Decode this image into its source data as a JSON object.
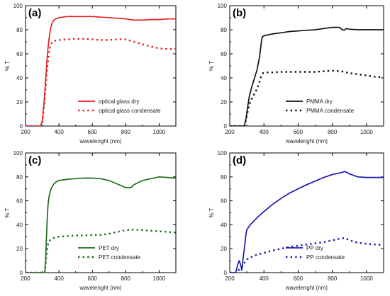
{
  "chart_data": [
    {
      "type": "line",
      "panel_label": "(a)",
      "xlabel": "wavelenght (nm)",
      "ylabel": "% T",
      "xlim": [
        200,
        1100
      ],
      "ylim": [
        0,
        100
      ],
      "xticks": [
        200,
        400,
        600,
        800,
        1000
      ],
      "yticks": [
        0,
        20,
        40,
        60,
        80,
        100
      ],
      "legend_position": "bottom-right",
      "series": [
        {
          "name": "optical glass dry",
          "color": "#e32222",
          "style": "solid",
          "x": [
            200,
            290,
            300,
            310,
            320,
            330,
            340,
            350,
            360,
            370,
            380,
            400,
            450,
            500,
            550,
            600,
            650,
            700,
            750,
            800,
            850,
            900,
            950,
            1000,
            1050,
            1100
          ],
          "y": [
            0,
            0,
            4,
            18,
            38,
            58,
            72,
            81,
            86,
            88,
            89,
            90,
            91,
            91,
            91,
            91,
            90.5,
            90,
            89.5,
            89,
            88,
            88,
            88.5,
            88.5,
            89,
            89
          ]
        },
        {
          "name": "optical glass condensate",
          "color": "#e32222",
          "style": "dotted",
          "x": [
            200,
            290,
            300,
            310,
            320,
            330,
            340,
            350,
            360,
            380,
            400,
            450,
            500,
            550,
            600,
            650,
            700,
            750,
            800,
            850,
            900,
            950,
            1000,
            1050,
            1100
          ],
          "y": [
            0,
            0,
            3,
            15,
            32,
            48,
            60,
            67,
            70,
            71,
            71.5,
            72,
            72.5,
            72.5,
            72,
            71.5,
            71.5,
            72,
            72,
            70,
            68,
            66,
            64.5,
            64,
            64
          ]
        }
      ]
    },
    {
      "type": "line",
      "panel_label": "(b)",
      "xlabel": "wavelenght (nm)",
      "ylabel": "% T",
      "xlim": [
        200,
        1100
      ],
      "ylim": [
        0,
        100
      ],
      "xticks": [
        200,
        400,
        600,
        800,
        1000
      ],
      "yticks": [
        0,
        20,
        40,
        60,
        80,
        100
      ],
      "legend_position": "bottom-right",
      "series": [
        {
          "name": "PMMA dry",
          "color": "#111111",
          "style": "solid",
          "x": [
            200,
            285,
            295,
            305,
            315,
            330,
            345,
            360,
            375,
            385,
            390,
            400,
            450,
            500,
            550,
            600,
            650,
            700,
            750,
            800,
            840,
            860,
            870,
            880,
            900,
            950,
            1000,
            1050,
            1100
          ],
          "y": [
            0,
            0,
            6,
            16,
            25,
            33,
            40,
            47,
            58,
            70,
            74,
            75,
            76.5,
            77.5,
            78.5,
            79,
            79.5,
            80,
            81,
            82,
            82,
            80,
            79.5,
            81,
            80.5,
            80,
            80,
            80,
            80
          ]
        },
        {
          "name": "PMMA condensate",
          "color": "#111111",
          "style": "dotted",
          "x": [
            200,
            285,
            295,
            305,
            315,
            330,
            345,
            360,
            375,
            385,
            395,
            420,
            450,
            500,
            550,
            600,
            650,
            700,
            750,
            800,
            850,
            900,
            950,
            1000,
            1050,
            1100
          ],
          "y": [
            0,
            0,
            5,
            12,
            18,
            23,
            27,
            31,
            37,
            42,
            44,
            44.5,
            44.5,
            45,
            45,
            45,
            45,
            45,
            45.5,
            46,
            45.5,
            44,
            43,
            42,
            41,
            40.5
          ]
        }
      ]
    },
    {
      "type": "line",
      "panel_label": "(c)",
      "xlabel": "wavelenght (nm)",
      "ylabel": "% T",
      "xlim": [
        200,
        1100
      ],
      "ylim": [
        0,
        100
      ],
      "xticks": [
        200,
        400,
        600,
        800,
        1000
      ],
      "yticks": [
        0,
        20,
        40,
        60,
        80,
        100
      ],
      "legend_position": "bottom-right",
      "series": [
        {
          "name": "PET dry",
          "color": "#1f6b1f",
          "style": "solid",
          "x": [
            200,
            315,
            320,
            325,
            330,
            335,
            340,
            350,
            360,
            370,
            380,
            400,
            450,
            500,
            550,
            600,
            650,
            700,
            750,
            800,
            830,
            850,
            900,
            950,
            1000,
            1050,
            1100
          ],
          "y": [
            0,
            0,
            10,
            28,
            45,
            57,
            63,
            69,
            72,
            74,
            75.5,
            77,
            78,
            78.5,
            79,
            79,
            78.5,
            77,
            74,
            71,
            71,
            73.5,
            77,
            78.5,
            80,
            79.5,
            79
          ]
        },
        {
          "name": "PET condensate",
          "color": "#1f6b1f",
          "style": "dotted",
          "x": [
            200,
            315,
            320,
            325,
            330,
            335,
            340,
            350,
            360,
            380,
            400,
            450,
            500,
            550,
            600,
            650,
            700,
            750,
            800,
            850,
            900,
            950,
            1000,
            1050,
            1100
          ],
          "y": [
            0,
            0,
            6,
            14,
            20,
            24,
            26,
            27.5,
            28.5,
            29.5,
            30,
            30.5,
            31,
            31,
            31.5,
            31.5,
            32.5,
            34,
            35.5,
            36,
            35.5,
            35,
            34.5,
            34,
            33.5
          ]
        }
      ]
    },
    {
      "type": "line",
      "panel_label": "(d)",
      "xlabel": "wavelenght (nm)",
      "ylabel": "% T",
      "xlim": [
        200,
        1100
      ],
      "ylim": [
        0,
        100
      ],
      "xticks": [
        200,
        400,
        600,
        800,
        1000
      ],
      "yticks": [
        0,
        20,
        40,
        60,
        80,
        100
      ],
      "legend_position": "bottom-right",
      "series": [
        {
          "name": "PP dry",
          "color": "#1a1ab5",
          "style": "solid",
          "x": [
            200,
            235,
            245,
            255,
            265,
            270,
            275,
            285,
            295,
            300,
            310,
            320,
            340,
            360,
            380,
            400,
            450,
            500,
            550,
            600,
            650,
            700,
            750,
            800,
            850,
            875,
            900,
            950,
            1000,
            1050,
            1100
          ],
          "y": [
            0,
            0,
            6,
            10,
            6,
            2,
            8,
            20,
            32,
            36,
            38,
            40,
            43,
            46,
            48.5,
            51,
            57,
            62,
            66.5,
            70,
            73.5,
            76.5,
            79.5,
            82,
            83.5,
            84.5,
            82.5,
            80,
            79.5,
            79.5,
            79.5
          ]
        },
        {
          "name": "PP condensate",
          "color": "#1a1ab5",
          "style": "dotted",
          "x": [
            200,
            235,
            250,
            260,
            270,
            280,
            290,
            300,
            320,
            350,
            400,
            450,
            500,
            550,
            600,
            650,
            700,
            750,
            800,
            850,
            875,
            900,
            950,
            1000,
            1050,
            1100
          ],
          "y": [
            0,
            0,
            2,
            3,
            4,
            7,
            9,
            11,
            12.5,
            14.5,
            16.5,
            18.5,
            20,
            21.5,
            22.5,
            23.5,
            24.5,
            25.5,
            27,
            28.5,
            29,
            27,
            25,
            24,
            23.5,
            23
          ]
        }
      ]
    }
  ]
}
